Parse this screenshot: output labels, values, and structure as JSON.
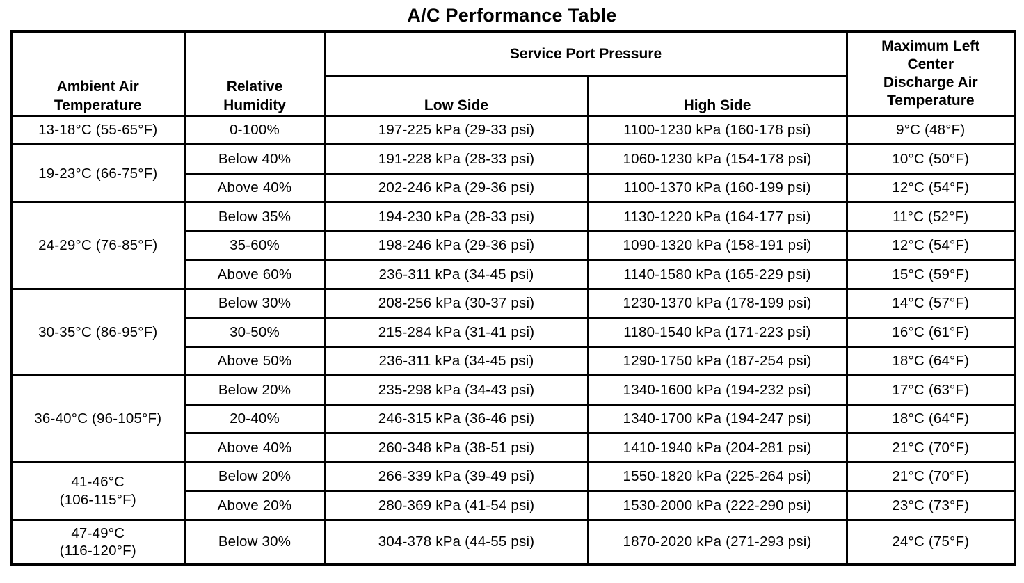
{
  "title": "A/C Performance Table",
  "table": {
    "headers": {
      "ambient": "Ambient Air\nTemperature",
      "humidity": "Relative\nHumidity",
      "service_port": "Service Port Pressure",
      "low_side": "Low Side",
      "high_side": "High Side",
      "max_discharge": "Maximum Left\nCenter\nDischarge Air\nTemperature"
    },
    "groups": [
      {
        "ambient": "13-18°C (55-65°F)",
        "rows": [
          {
            "humidity": "0-100%",
            "low": "197-225 kPa (29-33 psi)",
            "high": "1100-1230 kPa (160-178 psi)",
            "discharge": "9°C (48°F)"
          }
        ]
      },
      {
        "ambient": "19-23°C (66-75°F)",
        "rows": [
          {
            "humidity": "Below 40%",
            "low": "191-228 kPa (28-33 psi)",
            "high": "1060-1230 kPa (154-178 psi)",
            "discharge": "10°C (50°F)"
          },
          {
            "humidity": "Above 40%",
            "low": "202-246 kPa (29-36 psi)",
            "high": "1100-1370 kPa (160-199 psi)",
            "discharge": "12°C (54°F)"
          }
        ]
      },
      {
        "ambient": "24-29°C (76-85°F)",
        "rows": [
          {
            "humidity": "Below 35%",
            "low": "194-230 kPa (28-33 psi)",
            "high": "1130-1220 kPa (164-177 psi)",
            "discharge": "11°C (52°F)"
          },
          {
            "humidity": "35-60%",
            "low": "198-246 kPa (29-36 psi)",
            "high": "1090-1320 kPa (158-191 psi)",
            "discharge": "12°C (54°F)"
          },
          {
            "humidity": "Above 60%",
            "low": "236-311 kPa (34-45 psi)",
            "high": "1140-1580 kPa (165-229 psi)",
            "discharge": "15°C (59°F)"
          }
        ]
      },
      {
        "ambient": "30-35°C (86-95°F)",
        "rows": [
          {
            "humidity": "Below 30%",
            "low": "208-256 kPa (30-37 psi)",
            "high": "1230-1370 kPa (178-199 psi)",
            "discharge": "14°C (57°F)"
          },
          {
            "humidity": "30-50%",
            "low": "215-284 kPa (31-41 psi)",
            "high": "1180-1540 kPa (171-223 psi)",
            "discharge": "16°C (61°F)"
          },
          {
            "humidity": "Above 50%",
            "low": "236-311 kPa (34-45 psi)",
            "high": "1290-1750 kPa (187-254 psi)",
            "discharge": "18°C (64°F)"
          }
        ]
      },
      {
        "ambient": "36-40°C (96-105°F)",
        "rows": [
          {
            "humidity": "Below 20%",
            "low": "235-298 kPa (34-43 psi)",
            "high": "1340-1600 kPa (194-232 psi)",
            "discharge": "17°C (63°F)"
          },
          {
            "humidity": "20-40%",
            "low": "246-315 kPa (36-46 psi)",
            "high": "1340-1700 kPa (194-247 psi)",
            "discharge": "18°C (64°F)"
          },
          {
            "humidity": "Above 40%",
            "low": "260-348 kPa (38-51 psi)",
            "high": "1410-1940 kPa (204-281 psi)",
            "discharge": "21°C (70°F)"
          }
        ]
      },
      {
        "ambient": "41-46°C\n(106-115°F)",
        "rows": [
          {
            "humidity": "Below 20%",
            "low": "266-339 kPa (39-49 psi)",
            "high": "1550-1820 kPa (225-264 psi)",
            "discharge": "21°C (70°F)"
          },
          {
            "humidity": "Above 20%",
            "low": "280-369 kPa (41-54 psi)",
            "high": "1530-2000 kPa (222-290 psi)",
            "discharge": "23°C (73°F)"
          }
        ]
      },
      {
        "ambient": "47-49°C\n(116-120°F)",
        "rows": [
          {
            "humidity": "Below 30%",
            "low": "304-378 kPa (44-55 psi)",
            "high": "1870-2020 kPa (271-293 psi)",
            "discharge": "24°C (75°F)"
          }
        ]
      }
    ]
  }
}
